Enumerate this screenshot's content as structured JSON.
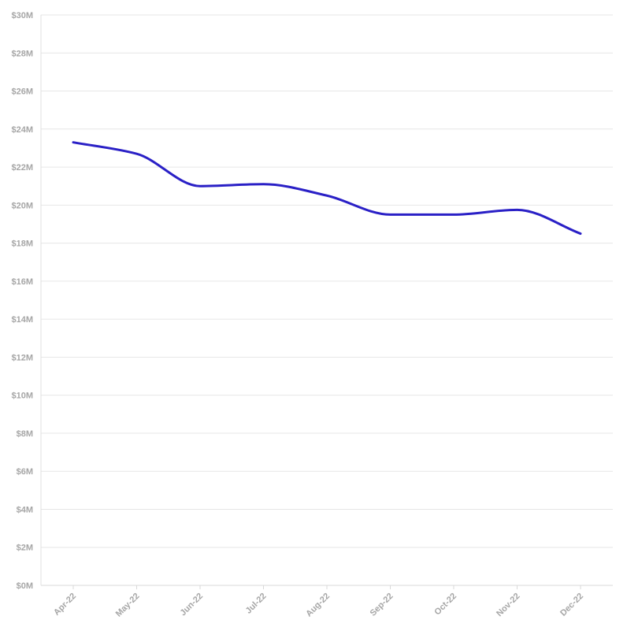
{
  "chart_data": {
    "type": "line",
    "categories": [
      "Apr-22",
      "May-22",
      "Jun-22",
      "Jul-22",
      "Aug-22",
      "Sep-22",
      "Oct-22",
      "Nov-22",
      "Dec-22"
    ],
    "series": [
      {
        "values": [
          23.3,
          22.7,
          21.0,
          21.1,
          20.5,
          19.5,
          19.5,
          19.75,
          18.5
        ],
        "color": "#2a20c6"
      }
    ],
    "y_ticks": [
      0,
      2,
      4,
      6,
      8,
      10,
      12,
      14,
      16,
      18,
      20,
      22,
      24,
      26,
      28,
      30
    ],
    "y_tick_labels": [
      "$0M",
      "$2M",
      "$4M",
      "$6M",
      "$8M",
      "$10M",
      "$12M",
      "$14M",
      "$16M",
      "$18M",
      "$20M",
      "$22M",
      "$24M",
      "$26M",
      "$28M",
      "$30M"
    ],
    "ylim": [
      0,
      30
    ],
    "title": "",
    "xlabel": "",
    "ylabel": "",
    "grid": true,
    "curve": "smooth",
    "x_tick_rotation": "diagonal"
  }
}
